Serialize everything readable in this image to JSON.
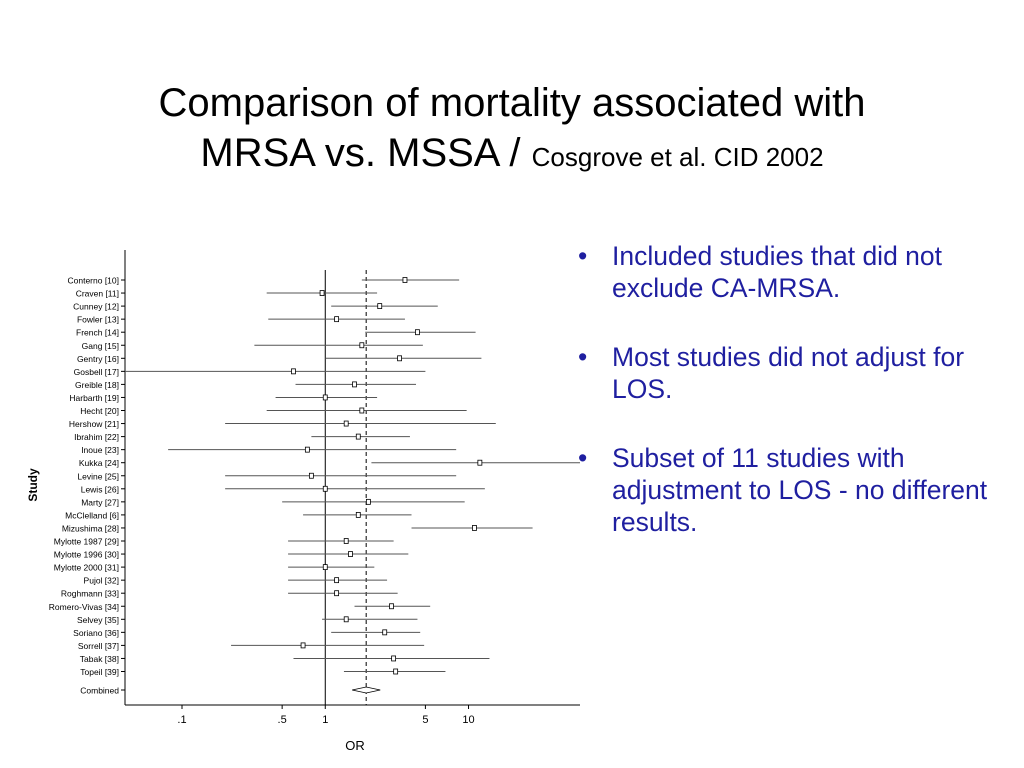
{
  "slide": {
    "title_line1": "Comparison of mortality associated with",
    "title_line2": "MRSA vs. MSSA / ",
    "title_source": "Cosgrove et al. CID 2002",
    "bullets": [
      "Included studies that did not exclude CA-MRSA.",
      "Most studies did not adjust for LOS.",
      "Subset of 11 studies with adjustment to LOS - no different results."
    ]
  },
  "chart_data": {
    "type": "forest",
    "xscale": "log",
    "xlabel": "OR",
    "ylabel": "Study",
    "xticks": [
      0.1,
      0.5,
      1,
      5,
      10
    ],
    "xtick_labels": [
      ".1",
      ".5",
      "1",
      "5",
      "10"
    ],
    "xlim": [
      0.04,
      60
    ],
    "reference_line": 1,
    "pooled_line": 1.93,
    "studies": [
      {
        "label": "Conterno [10]",
        "or": 3.6,
        "low": 1.8,
        "high": 8.6
      },
      {
        "label": "Craven [11]",
        "or": 0.95,
        "low": 0.39,
        "high": 2.3
      },
      {
        "label": "Cunney [12]",
        "or": 2.4,
        "low": 1.1,
        "high": 6.1
      },
      {
        "label": "Fowler [13]",
        "or": 1.2,
        "low": 0.4,
        "high": 3.6
      },
      {
        "label": "French [14]",
        "or": 4.4,
        "low": 1.9,
        "high": 11.2
      },
      {
        "label": "Gang [15]",
        "or": 1.8,
        "low": 0.32,
        "high": 4.8
      },
      {
        "label": "Gentry [16]",
        "or": 3.3,
        "low": 1.0,
        "high": 12.3
      },
      {
        "label": "Gosbell [17]",
        "or": 0.6,
        "low": 0.04,
        "high": 5.0
      },
      {
        "label": "Greible [18]",
        "or": 1.6,
        "low": 0.62,
        "high": 4.3
      },
      {
        "label": "Harbarth [19]",
        "or": 1.0,
        "low": 0.45,
        "high": 2.3
      },
      {
        "label": "Hecht [20]",
        "or": 1.8,
        "low": 0.39,
        "high": 9.7
      },
      {
        "label": "Hershow [21]",
        "or": 1.4,
        "low": 0.2,
        "high": 15.5
      },
      {
        "label": "Ibrahim [22]",
        "or": 1.7,
        "low": 0.8,
        "high": 3.9
      },
      {
        "label": "Inoue [23]",
        "or": 0.75,
        "low": 0.08,
        "high": 8.2
      },
      {
        "label": "Kukka [24]",
        "or": 12.0,
        "low": 2.1,
        "high": 60
      },
      {
        "label": "Levine [25]",
        "or": 0.8,
        "low": 0.2,
        "high": 8.2
      },
      {
        "label": "Lewis [26]",
        "or": 1.0,
        "low": 0.2,
        "high": 13.0
      },
      {
        "label": "Marty [27]",
        "or": 2.0,
        "low": 0.5,
        "high": 9.4
      },
      {
        "label": "McClelland [6]",
        "or": 1.7,
        "low": 0.7,
        "high": 4.0
      },
      {
        "label": "Mizushima [28]",
        "or": 11.0,
        "low": 4.0,
        "high": 28
      },
      {
        "label": "Mylotte 1987 [29]",
        "or": 1.4,
        "low": 0.55,
        "high": 3.0
      },
      {
        "label": "Mylotte 1996 [30]",
        "or": 1.5,
        "low": 0.55,
        "high": 3.8
      },
      {
        "label": "Mylotte 2000 [31]",
        "or": 1.0,
        "low": 0.55,
        "high": 2.2
      },
      {
        "label": "Pujol [32]",
        "or": 1.2,
        "low": 0.55,
        "high": 2.7
      },
      {
        "label": "Roghmann [33]",
        "or": 1.2,
        "low": 0.55,
        "high": 3.2
      },
      {
        "label": "Romero-Vivas [34]",
        "or": 2.9,
        "low": 1.6,
        "high": 5.4
      },
      {
        "label": "Selvey [35]",
        "or": 1.4,
        "low": 0.95,
        "high": 4.4
      },
      {
        "label": "Soriano [36]",
        "or": 2.6,
        "low": 1.1,
        "high": 4.6
      },
      {
        "label": "Sorrell [37]",
        "or": 0.7,
        "low": 0.22,
        "high": 4.9
      },
      {
        "label": "Tabak [38]",
        "or": 3.0,
        "low": 0.6,
        "high": 14.0
      },
      {
        "label": "Topeil [39]",
        "or": 3.1,
        "low": 1.35,
        "high": 6.9
      }
    ],
    "combined": {
      "label": "Combined",
      "or": 1.93,
      "low": 1.54,
      "high": 2.42
    }
  }
}
